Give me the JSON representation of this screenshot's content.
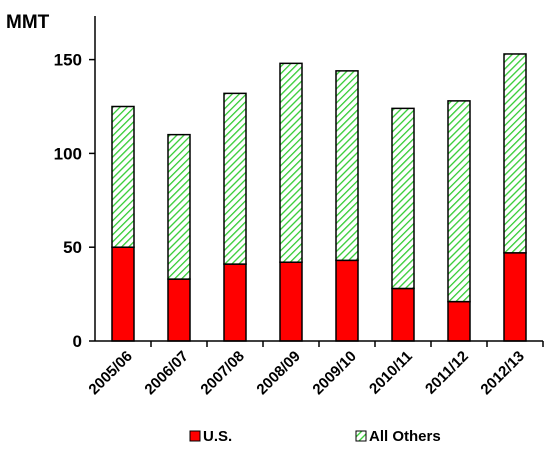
{
  "chart_data": {
    "type": "bar",
    "stacked": true,
    "ylabel": "MMT",
    "ylim": [
      0,
      160
    ],
    "yticks": [
      0,
      50,
      100,
      150
    ],
    "grid": false,
    "legend_position": "bottom",
    "categories": [
      "2005/06",
      "2006/07",
      "2007/08",
      "2008/09",
      "2009/10",
      "2010/11",
      "2011/12",
      "2012/13"
    ],
    "series": [
      {
        "name": "U.S.",
        "values": [
          50,
          33,
          41,
          42,
          43,
          28,
          21,
          47
        ],
        "color": "#ff0000",
        "pattern": "solid"
      },
      {
        "name": "All Others",
        "values": [
          75,
          77,
          91,
          106,
          101,
          96,
          107,
          106
        ],
        "color": "#33cc33",
        "pattern": "diagonal-hatch"
      }
    ]
  }
}
